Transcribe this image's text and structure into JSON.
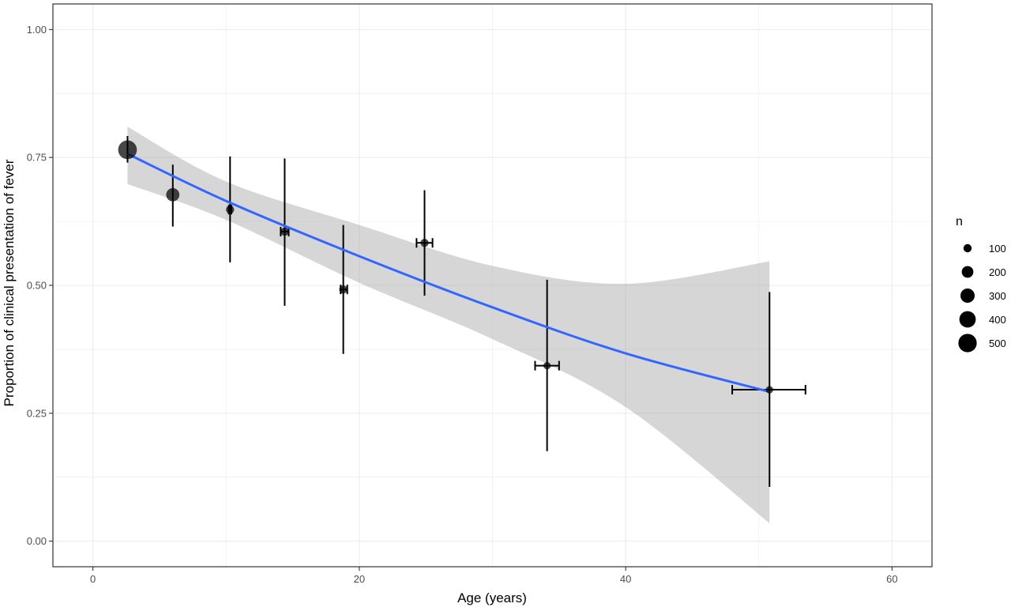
{
  "chart_data": {
    "type": "scatter",
    "title": "",
    "xlabel": "Age (years)",
    "ylabel": "Proportion of clinical presentation of fever",
    "xlim": [
      -3,
      63
    ],
    "ylim": [
      -0.05,
      1.05
    ],
    "x_ticks": [
      0,
      20,
      40,
      60
    ],
    "x_tick_labels": [
      "0",
      "20",
      "40",
      "60"
    ],
    "y_ticks": [
      0,
      0.25,
      0.5,
      0.75,
      1
    ],
    "y_tick_labels": [
      "0.00",
      "0.25",
      "0.50",
      "0.75",
      "1.00"
    ],
    "grid": true,
    "legend": {
      "title": "n",
      "position": "right",
      "sizes": [
        100,
        200,
        300,
        400,
        500
      ],
      "labels": [
        "100",
        "200",
        "300",
        "400",
        "500"
      ]
    },
    "points": [
      {
        "x": 2.6,
        "y": 0.765,
        "n": 520,
        "y_low": 0.74,
        "y_high": 0.792,
        "x_low": 2.6,
        "x_high": 2.6
      },
      {
        "x": 6.0,
        "y": 0.677,
        "n": 260,
        "y_low": 0.615,
        "y_high": 0.736,
        "x_low": 6.0,
        "x_high": 6.0
      },
      {
        "x": 10.3,
        "y": 0.648,
        "n": 100,
        "y_low": 0.545,
        "y_high": 0.752,
        "x_low": 10.2,
        "x_high": 10.4
      },
      {
        "x": 14.4,
        "y": 0.605,
        "n": 100,
        "y_low": 0.46,
        "y_high": 0.748,
        "x_low": 14.1,
        "x_high": 14.7
      },
      {
        "x": 18.8,
        "y": 0.492,
        "n": 100,
        "y_low": 0.366,
        "y_high": 0.618,
        "x_low": 18.6,
        "x_high": 19.1
      },
      {
        "x": 24.9,
        "y": 0.583,
        "n": 100,
        "y_low": 0.48,
        "y_high": 0.686,
        "x_low": 24.3,
        "x_high": 25.5
      },
      {
        "x": 34.1,
        "y": 0.343,
        "n": 80,
        "y_low": 0.176,
        "y_high": 0.511,
        "x_low": 33.2,
        "x_high": 35.0
      },
      {
        "x": 50.8,
        "y": 0.296,
        "n": 80,
        "y_low": 0.106,
        "y_high": 0.487,
        "x_low": 48.0,
        "x_high": 53.5
      }
    ],
    "trend": {
      "type": "smooth",
      "color": "#3366FF",
      "band_color": "#999999",
      "x": [
        2.6,
        10,
        20,
        30,
        40,
        50.8
      ],
      "y": [
        0.757,
        0.665,
        0.557,
        0.457,
        0.367,
        0.292
      ],
      "band_low": [
        0.698,
        0.628,
        0.505,
        0.395,
        0.262,
        0.035
      ],
      "band_high": [
        0.81,
        0.703,
        0.618,
        0.538,
        0.503,
        0.547
      ]
    },
    "colors": {
      "point": "#000000",
      "errorbar": "#000000",
      "grid": "#ebebeb",
      "panel_border": "#333333"
    }
  }
}
